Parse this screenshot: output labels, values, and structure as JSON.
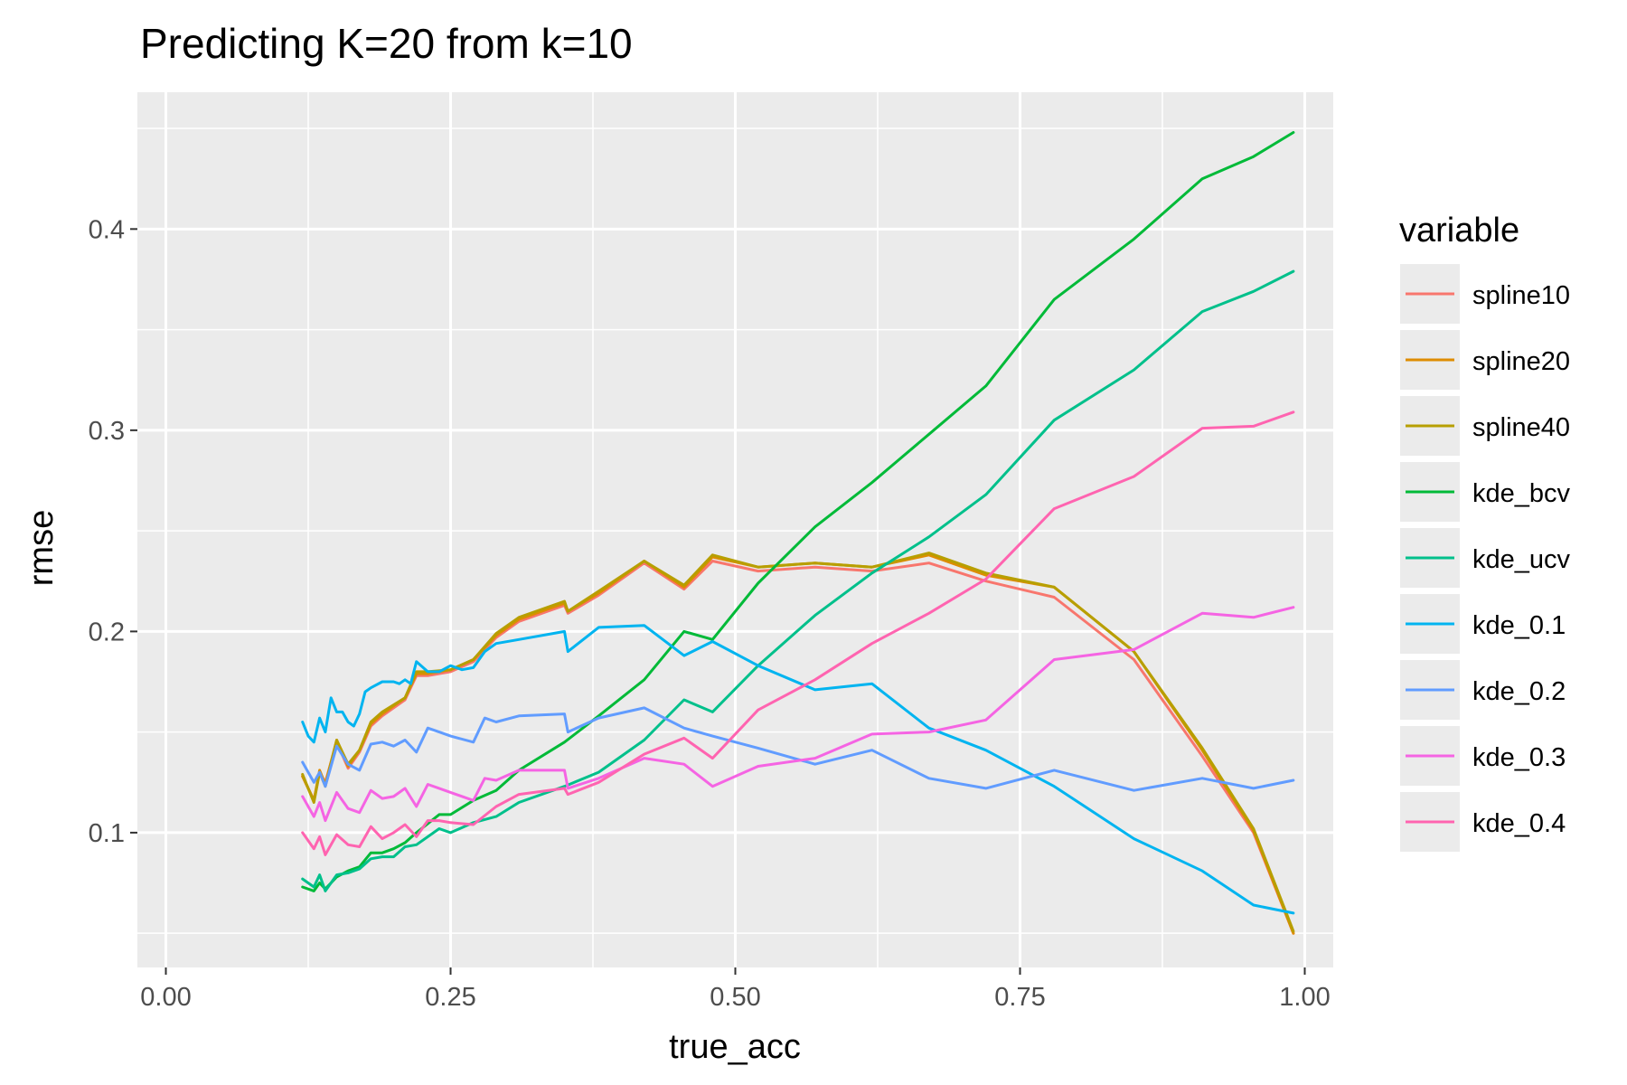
{
  "chart_data": {
    "type": "line",
    "title": "Predicting K=20 from k=10",
    "xlabel": "true_acc",
    "ylabel": "rmse",
    "xlim": [
      -0.025,
      1.025
    ],
    "ylim": [
      0.033,
      0.468
    ],
    "x_ticks": [
      0.0,
      0.25,
      0.5,
      0.75,
      1.0
    ],
    "x_tick_labels": [
      "0.00",
      "0.25",
      "0.50",
      "0.75",
      "1.00"
    ],
    "y_ticks": [
      0.1,
      0.2,
      0.3,
      0.4
    ],
    "y_tick_labels": [
      "0.1",
      "0.2",
      "0.3",
      "0.4"
    ],
    "grid": true,
    "legend_title": "variable",
    "legend_position": "right",
    "series": [
      {
        "name": "spline10",
        "color": "#F8766D",
        "x": [
          0.12,
          0.13,
          0.135,
          0.14,
          0.15,
          0.16,
          0.17,
          0.18,
          0.19,
          0.21,
          0.22,
          0.23,
          0.25,
          0.27,
          0.29,
          0.31,
          0.35,
          0.353,
          0.38,
          0.42,
          0.455,
          0.48,
          0.52,
          0.57,
          0.62,
          0.67,
          0.72,
          0.78,
          0.85,
          0.91,
          0.955,
          0.99
        ],
        "y": [
          0.128,
          0.116,
          0.13,
          0.125,
          0.145,
          0.132,
          0.14,
          0.153,
          0.158,
          0.166,
          0.178,
          0.178,
          0.18,
          0.185,
          0.197,
          0.205,
          0.213,
          0.209,
          0.218,
          0.234,
          0.221,
          0.235,
          0.23,
          0.232,
          0.23,
          0.234,
          0.225,
          0.217,
          0.186,
          0.138,
          0.1,
          0.05
        ]
      },
      {
        "name": "spline20",
        "color": "#DE8C00",
        "x": [
          0.12,
          0.13,
          0.135,
          0.14,
          0.15,
          0.16,
          0.17,
          0.18,
          0.19,
          0.21,
          0.22,
          0.23,
          0.25,
          0.27,
          0.29,
          0.31,
          0.35,
          0.353,
          0.38,
          0.42,
          0.455,
          0.48,
          0.52,
          0.57,
          0.62,
          0.67,
          0.72,
          0.78,
          0.85,
          0.91,
          0.955,
          0.99
        ],
        "y": [
          0.128,
          0.116,
          0.131,
          0.124,
          0.146,
          0.133,
          0.141,
          0.154,
          0.159,
          0.167,
          0.179,
          0.179,
          0.181,
          0.186,
          0.198,
          0.206,
          0.214,
          0.21,
          0.219,
          0.235,
          0.222,
          0.237,
          0.232,
          0.234,
          0.232,
          0.238,
          0.228,
          0.222,
          0.19,
          0.141,
          0.101,
          0.05
        ]
      },
      {
        "name": "spline40",
        "color": "#B79F00",
        "x": [
          0.12,
          0.13,
          0.135,
          0.14,
          0.15,
          0.16,
          0.17,
          0.18,
          0.19,
          0.21,
          0.22,
          0.23,
          0.25,
          0.27,
          0.29,
          0.31,
          0.35,
          0.353,
          0.38,
          0.42,
          0.455,
          0.48,
          0.52,
          0.57,
          0.62,
          0.67,
          0.72,
          0.78,
          0.85,
          0.91,
          0.955,
          0.99
        ],
        "y": [
          0.129,
          0.115,
          0.13,
          0.123,
          0.146,
          0.134,
          0.141,
          0.155,
          0.16,
          0.167,
          0.18,
          0.18,
          0.181,
          0.186,
          0.199,
          0.207,
          0.215,
          0.21,
          0.22,
          0.235,
          0.223,
          0.238,
          0.232,
          0.234,
          0.232,
          0.239,
          0.229,
          0.222,
          0.19,
          0.142,
          0.102,
          0.051
        ]
      },
      {
        "name": "kde_bcv",
        "color": "#00BA38",
        "x": [
          0.12,
          0.13,
          0.135,
          0.14,
          0.15,
          0.16,
          0.17,
          0.18,
          0.19,
          0.2,
          0.21,
          0.22,
          0.24,
          0.25,
          0.27,
          0.29,
          0.31,
          0.35,
          0.38,
          0.42,
          0.455,
          0.48,
          0.52,
          0.57,
          0.62,
          0.67,
          0.72,
          0.78,
          0.85,
          0.91,
          0.955,
          0.99
        ],
        "y": [
          0.073,
          0.071,
          0.075,
          0.072,
          0.078,
          0.081,
          0.083,
          0.09,
          0.09,
          0.092,
          0.095,
          0.1,
          0.109,
          0.109,
          0.116,
          0.121,
          0.131,
          0.145,
          0.158,
          0.176,
          0.2,
          0.196,
          0.224,
          0.252,
          0.274,
          0.298,
          0.322,
          0.365,
          0.395,
          0.425,
          0.436,
          0.448
        ]
      },
      {
        "name": "kde_ucv",
        "color": "#00C08B",
        "x": [
          0.12,
          0.13,
          0.135,
          0.14,
          0.15,
          0.16,
          0.17,
          0.18,
          0.19,
          0.2,
          0.21,
          0.22,
          0.24,
          0.25,
          0.27,
          0.29,
          0.31,
          0.35,
          0.38,
          0.42,
          0.455,
          0.48,
          0.52,
          0.57,
          0.62,
          0.67,
          0.72,
          0.78,
          0.85,
          0.91,
          0.955,
          0.99
        ],
        "y": [
          0.077,
          0.073,
          0.079,
          0.071,
          0.079,
          0.08,
          0.082,
          0.087,
          0.088,
          0.088,
          0.093,
          0.094,
          0.102,
          0.1,
          0.105,
          0.108,
          0.115,
          0.123,
          0.13,
          0.146,
          0.166,
          0.16,
          0.183,
          0.208,
          0.229,
          0.247,
          0.268,
          0.305,
          0.33,
          0.359,
          0.369,
          0.379
        ]
      },
      {
        "name": "kde_0.1",
        "color": "#00B4F0",
        "x": [
          0.12,
          0.125,
          0.13,
          0.135,
          0.14,
          0.145,
          0.15,
          0.155,
          0.16,
          0.165,
          0.17,
          0.175,
          0.18,
          0.19,
          0.2,
          0.205,
          0.21,
          0.215,
          0.22,
          0.23,
          0.24,
          0.25,
          0.26,
          0.27,
          0.28,
          0.29,
          0.31,
          0.35,
          0.353,
          0.38,
          0.42,
          0.455,
          0.48,
          0.52,
          0.57,
          0.62,
          0.67,
          0.72,
          0.78,
          0.85,
          0.91,
          0.955,
          0.99
        ],
        "y": [
          0.155,
          0.148,
          0.145,
          0.157,
          0.15,
          0.167,
          0.16,
          0.16,
          0.155,
          0.153,
          0.159,
          0.17,
          0.172,
          0.175,
          0.175,
          0.174,
          0.176,
          0.174,
          0.185,
          0.18,
          0.18,
          0.183,
          0.181,
          0.182,
          0.19,
          0.194,
          0.196,
          0.2,
          0.19,
          0.202,
          0.203,
          0.188,
          0.195,
          0.183,
          0.171,
          0.174,
          0.152,
          0.141,
          0.123,
          0.097,
          0.081,
          0.064,
          0.06
        ]
      },
      {
        "name": "kde_0.2",
        "color": "#619CFF",
        "x": [
          0.12,
          0.13,
          0.135,
          0.14,
          0.15,
          0.16,
          0.17,
          0.18,
          0.19,
          0.2,
          0.21,
          0.22,
          0.23,
          0.24,
          0.25,
          0.27,
          0.28,
          0.29,
          0.31,
          0.35,
          0.353,
          0.38,
          0.42,
          0.455,
          0.48,
          0.52,
          0.57,
          0.62,
          0.67,
          0.72,
          0.78,
          0.85,
          0.91,
          0.955,
          0.99
        ],
        "y": [
          0.135,
          0.125,
          0.13,
          0.123,
          0.143,
          0.134,
          0.131,
          0.144,
          0.145,
          0.143,
          0.146,
          0.14,
          0.152,
          0.15,
          0.148,
          0.145,
          0.157,
          0.155,
          0.158,
          0.159,
          0.15,
          0.157,
          0.162,
          0.152,
          0.148,
          0.142,
          0.134,
          0.141,
          0.127,
          0.122,
          0.131,
          0.121,
          0.127,
          0.122,
          0.126
        ]
      },
      {
        "name": "kde_0.3",
        "color": "#F564E3",
        "x": [
          0.12,
          0.13,
          0.135,
          0.14,
          0.15,
          0.16,
          0.17,
          0.18,
          0.19,
          0.2,
          0.21,
          0.22,
          0.23,
          0.24,
          0.25,
          0.27,
          0.28,
          0.29,
          0.31,
          0.35,
          0.353,
          0.38,
          0.42,
          0.455,
          0.48,
          0.52,
          0.57,
          0.62,
          0.67,
          0.72,
          0.78,
          0.85,
          0.91,
          0.955,
          0.99
        ],
        "y": [
          0.118,
          0.108,
          0.115,
          0.106,
          0.12,
          0.112,
          0.11,
          0.121,
          0.117,
          0.118,
          0.122,
          0.113,
          0.124,
          0.122,
          0.12,
          0.116,
          0.127,
          0.126,
          0.131,
          0.131,
          0.122,
          0.127,
          0.137,
          0.134,
          0.123,
          0.133,
          0.137,
          0.149,
          0.15,
          0.156,
          0.186,
          0.191,
          0.209,
          0.207,
          0.212
        ]
      },
      {
        "name": "kde_0.4",
        "color": "#FF64B0",
        "x": [
          0.12,
          0.13,
          0.135,
          0.14,
          0.15,
          0.16,
          0.17,
          0.18,
          0.19,
          0.2,
          0.21,
          0.22,
          0.23,
          0.24,
          0.25,
          0.27,
          0.29,
          0.31,
          0.35,
          0.353,
          0.38,
          0.42,
          0.455,
          0.48,
          0.52,
          0.57,
          0.62,
          0.67,
          0.72,
          0.78,
          0.85,
          0.91,
          0.955,
          0.99
        ],
        "y": [
          0.1,
          0.092,
          0.098,
          0.089,
          0.099,
          0.094,
          0.093,
          0.103,
          0.097,
          0.1,
          0.104,
          0.098,
          0.106,
          0.106,
          0.105,
          0.104,
          0.113,
          0.119,
          0.122,
          0.119,
          0.125,
          0.139,
          0.147,
          0.137,
          0.161,
          0.176,
          0.194,
          0.209,
          0.226,
          0.261,
          0.277,
          0.301,
          0.302,
          0.309
        ]
      }
    ]
  }
}
